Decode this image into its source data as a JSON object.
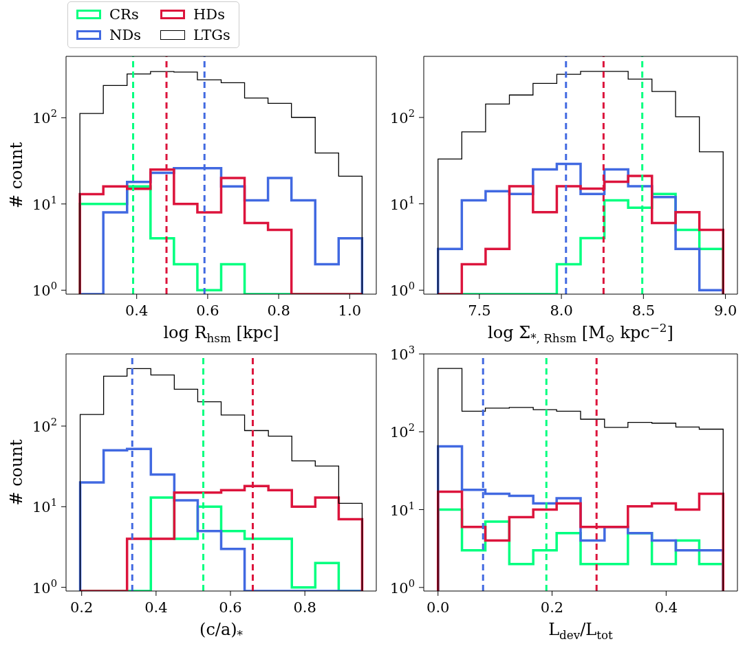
{
  "chart_data": [
    {
      "type": "histogram",
      "xlabel": "log R$_{hsm}$ [kpc]",
      "ylabel": "# count",
      "legend": "top left",
      "log": "y",
      "bins": [
        0.24,
        0.306,
        0.373,
        0.439,
        0.505,
        0.571,
        0.638,
        0.704,
        0.77,
        0.836,
        0.903,
        0.969,
        1.035
      ],
      "series": [
        {
          "name": "CRs",
          "color": "#00ff7f",
          "values": [
            10,
            10,
            16,
            4,
            2,
            1,
            2,
            null,
            null,
            null,
            null,
            null
          ]
        },
        {
          "name": "NDs",
          "color": "#4169e1",
          "values": [
            null,
            8,
            18,
            23,
            26,
            26,
            16,
            11,
            20,
            11,
            2,
            4
          ]
        },
        {
          "name": "HDs",
          "color": "#dc143c",
          "values": [
            13,
            16,
            15,
            25,
            10,
            8,
            20,
            6,
            5,
            null,
            null,
            null
          ]
        },
        {
          "name": "LTGs",
          "color": "#000000",
          "values": [
            112,
            237,
            322,
            343,
            338,
            275,
            255,
            169,
            147,
            101,
            39,
            21
          ]
        }
      ],
      "xlim": [
        0.201,
        1.075
      ],
      "xticks": [
        0.4,
        0.6,
        0.8,
        {
          "value": 1,
          "label": "1.0"
        }
      ],
      "ylim": [
        0.9,
        515
      ],
      "yticks": [
        {
          "value": 1,
          "label": "10$^{0}$"
        },
        {
          "value": 10,
          "label": "10$^{1}$"
        },
        {
          "value": 100,
          "label": "10$^{2}$"
        }
      ],
      "ref_lines": [
        {
          "axis": "x",
          "value": 0.39,
          "color": "#00ff7f",
          "line_style": "dashed"
        },
        {
          "axis": "x",
          "value": 0.484,
          "color": "#dc143c",
          "line_style": "dashed"
        },
        {
          "axis": "x",
          "value": 0.591,
          "color": "#4169e1",
          "line_style": "dashed"
        }
      ]
    },
    {
      "type": "histogram",
      "xlabel": "log Σ$_{*, Rhsm}$ [M$_{⊙}$ kpc$^{−2}$]",
      "log": "y",
      "bins": [
        7.248,
        7.393,
        7.538,
        7.683,
        7.827,
        7.972,
        8.117,
        8.262,
        8.407,
        8.552,
        8.696,
        8.841,
        8.986
      ],
      "series": [
        {
          "color": "#00ff7f",
          "values": [
            null,
            null,
            null,
            null,
            null,
            2,
            4,
            11,
            9,
            13,
            5,
            3
          ]
        },
        {
          "color": "#4169e1",
          "values": [
            3,
            11,
            14,
            13,
            25,
            29,
            13,
            25,
            16,
            12,
            3,
            1
          ]
        },
        {
          "color": "#dc143c",
          "values": [
            null,
            2,
            3,
            16,
            8,
            16,
            15,
            18,
            21,
            6,
            8,
            5
          ]
        },
        {
          "color": "#000000",
          "values": [
            33,
            68,
            143,
            182,
            248,
            316,
            341,
            341,
            278,
            200,
            102,
            40
          ]
        }
      ],
      "xlim": [
        7.161,
        9.073
      ],
      "xticks": [
        7.5,
        {
          "value": 8,
          "label": "8.0"
        },
        8.5,
        {
          "value": 9,
          "label": "9.0"
        }
      ],
      "ylim": [
        0.9,
        510
      ],
      "yticks": [
        {
          "value": 1,
          "label": "10$^{0}$"
        },
        {
          "value": 10,
          "label": "10$^{1}$"
        },
        {
          "value": 100,
          "label": "10$^{2}$"
        }
      ],
      "ref_lines": [
        {
          "axis": "x",
          "value": 8.028,
          "color": "#4169e1",
          "line_style": "dashed"
        },
        {
          "axis": "x",
          "value": 8.257,
          "color": "#dc143c",
          "line_style": "dashed"
        },
        {
          "axis": "x",
          "value": 8.493,
          "color": "#00ff7f",
          "line_style": "dashed"
        }
      ]
    },
    {
      "type": "histogram",
      "xlabel": "(c/a)$_{*}$",
      "ylabel": "# count",
      "log": "y",
      "bins": [
        0.196,
        0.259,
        0.322,
        0.386,
        0.449,
        0.512,
        0.575,
        0.638,
        0.702,
        0.765,
        0.828,
        0.891,
        0.954
      ],
      "series": [
        {
          "color": "#00ff7f",
          "values": [
            null,
            null,
            null,
            13,
            4,
            10,
            5,
            4,
            4,
            1,
            2,
            null
          ]
        },
        {
          "color": "#4169e1",
          "values": [
            20,
            50,
            52,
            25,
            12,
            5,
            3,
            null,
            null,
            null,
            null,
            null
          ]
        },
        {
          "color": "#dc143c",
          "values": [
            null,
            null,
            4,
            4,
            15,
            15,
            16,
            18,
            16,
            10,
            13,
            7
          ]
        },
        {
          "color": "#000000",
          "values": [
            139,
            416,
            517,
            430,
            286,
            200,
            137,
            88,
            75,
            37,
            32,
            11
          ]
        }
      ],
      "xlim": [
        0.158,
        0.992
      ],
      "xticks": [
        0.2,
        0.4,
        0.6,
        0.8
      ],
      "ylim": [
        0.9,
        785
      ],
      "yticks": [
        {
          "value": 1,
          "label": "10$^{0}$"
        },
        {
          "value": 10,
          "label": "10$^{1}$"
        },
        {
          "value": 100,
          "label": "10$^{2}$"
        }
      ],
      "ref_lines": [
        {
          "axis": "x",
          "value": 0.336,
          "color": "#4169e1",
          "line_style": "dashed"
        },
        {
          "axis": "x",
          "value": 0.527,
          "color": "#00ff7f",
          "line_style": "dashed"
        },
        {
          "axis": "x",
          "value": 0.66,
          "color": "#dc143c",
          "line_style": "dashed"
        }
      ]
    },
    {
      "type": "histogram",
      "xlabel": "L$_{dev}$/L$_{tot}$",
      "log": "y",
      "bins": [
        0,
        0.042,
        0.083,
        0.125,
        0.167,
        0.208,
        0.25,
        0.292,
        0.333,
        0.375,
        0.417,
        0.458,
        0.5
      ],
      "series": [
        {
          "color": "#00ff7f",
          "values": [
            10,
            3,
            7,
            2,
            3,
            5,
            2,
            2,
            5,
            2,
            4,
            2
          ]
        },
        {
          "color": "#4169e1",
          "values": [
            65,
            18,
            16,
            15,
            12,
            14,
            4,
            6,
            5,
            4,
            3,
            3
          ]
        },
        {
          "color": "#dc143c",
          "values": [
            17,
            6,
            4,
            8,
            10,
            12,
            6,
            6,
            11,
            12,
            10,
            16
          ]
        },
        {
          "color": "#000000",
          "values": [
            650,
            184,
            201,
            205,
            192,
            184,
            145,
            114,
            132,
            129,
            115,
            108
          ]
        }
      ],
      "xlim": [
        -0.025,
        0.525
      ],
      "xticks": [
        {
          "value": 0,
          "label": "0.0"
        },
        0.2,
        0.4
      ],
      "ylim": [
        0.9,
        1000
      ],
      "yticks": [
        {
          "value": 1,
          "label": "10$^{0}$"
        },
        {
          "value": 10,
          "label": "10$^{1}$"
        },
        {
          "value": 100,
          "label": "10$^{2}$"
        },
        {
          "value": 1000,
          "label": "10$^{3}$"
        }
      ],
      "ref_lines": [
        {
          "axis": "x",
          "value": 0.079,
          "color": "#4169e1",
          "line_style": "dashed"
        },
        {
          "axis": "x",
          "value": 0.19,
          "color": "#00ff7f",
          "line_style": "dashed"
        },
        {
          "axis": "x",
          "value": 0.278,
          "color": "#dc143c",
          "line_style": "dashed"
        }
      ]
    }
  ]
}
